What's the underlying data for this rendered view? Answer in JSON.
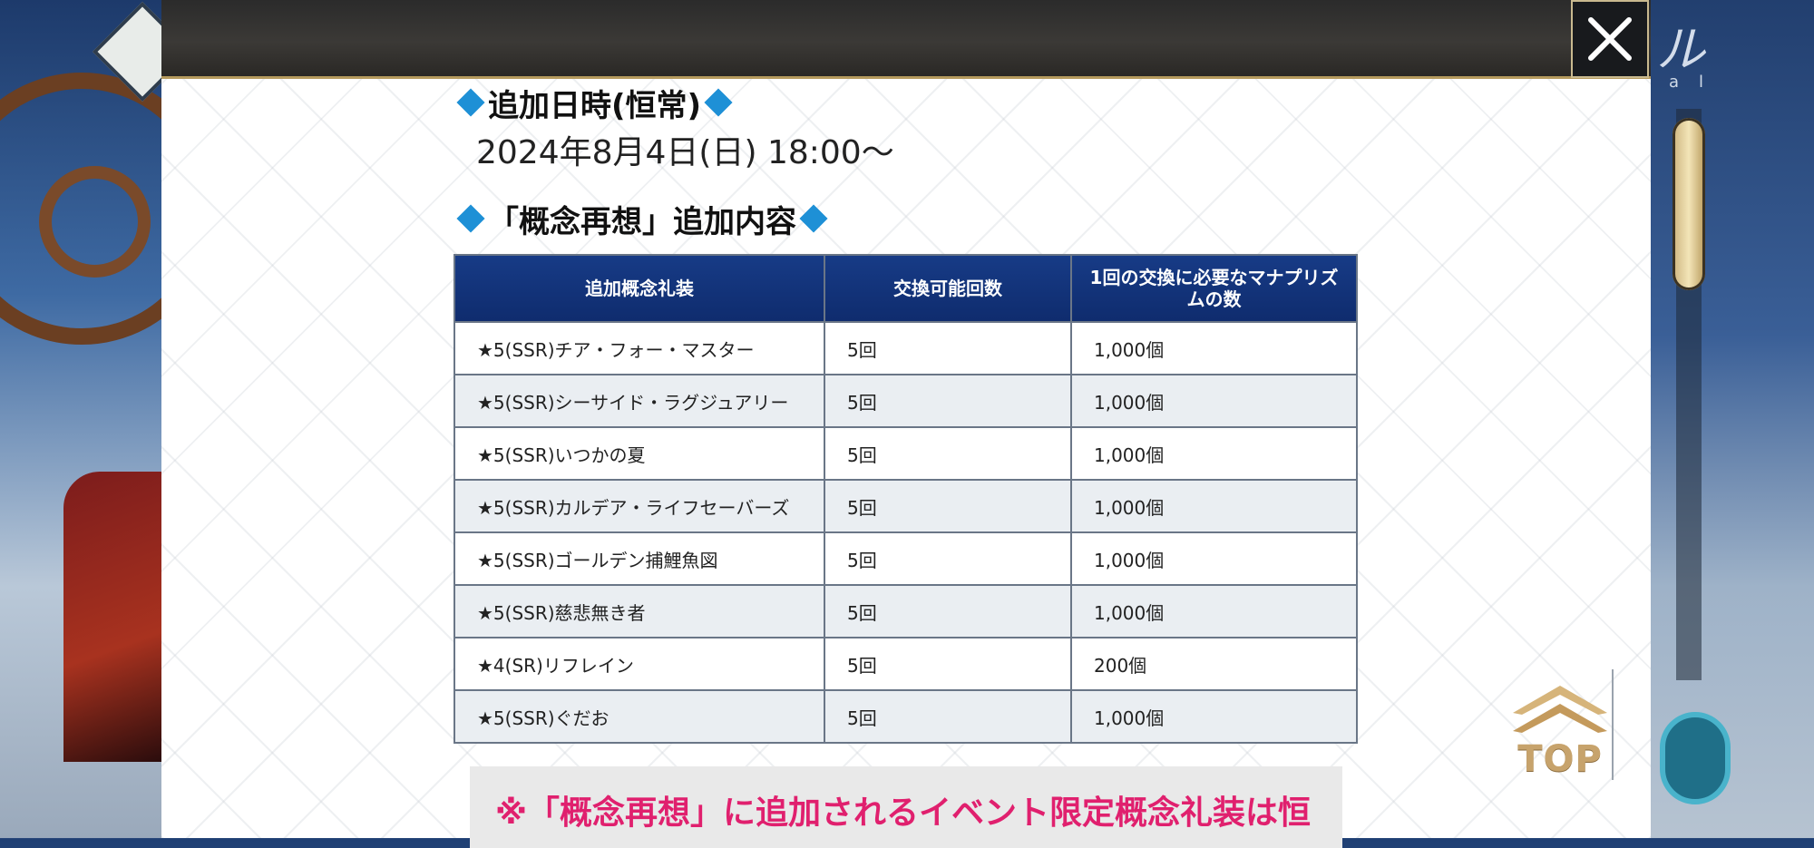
{
  "background": {
    "title": "ル",
    "subtitle": "al"
  },
  "header": {
    "close_label": "×"
  },
  "section1": {
    "heading": "追加日時(恒常)",
    "date": "2024年8月4日(日) 18:00～"
  },
  "section2": {
    "heading": "「概念再想」追加内容"
  },
  "table": {
    "headers": [
      "追加概念礼装",
      "交換可能回数",
      "1回の交換に必要なマナプリズムの数"
    ],
    "rows": [
      {
        "name": "★5(SSR)チア・フォー・マスター",
        "count": "5回",
        "cost": "1,000個"
      },
      {
        "name": "★5(SSR)シーサイド・ラグジュアリー",
        "count": "5回",
        "cost": "1,000個"
      },
      {
        "name": "★5(SSR)いつかの夏",
        "count": "5回",
        "cost": "1,000個"
      },
      {
        "name": "★5(SSR)カルデア・ライフセーバーズ",
        "count": "5回",
        "cost": "1,000個"
      },
      {
        "name": "★5(SSR)ゴールデン捕鯉魚図",
        "count": "5回",
        "cost": "1,000個"
      },
      {
        "name": "★5(SSR)慈悲無き者",
        "count": "5回",
        "cost": "1,000個"
      },
      {
        "name": "★4(SR)リフレイン",
        "count": "5回",
        "cost": "200個"
      },
      {
        "name": "★5(SSR)ぐだお",
        "count": "5回",
        "cost": "1,000個"
      }
    ]
  },
  "notice": {
    "text": "※「概念再想」に追加されるイベント限定概念礼装は恒"
  },
  "top_button": {
    "label": "TOP"
  },
  "colors": {
    "accent_blue": "#1e90d6",
    "table_header": "#173b86",
    "notice_pink": "#e0206e"
  }
}
